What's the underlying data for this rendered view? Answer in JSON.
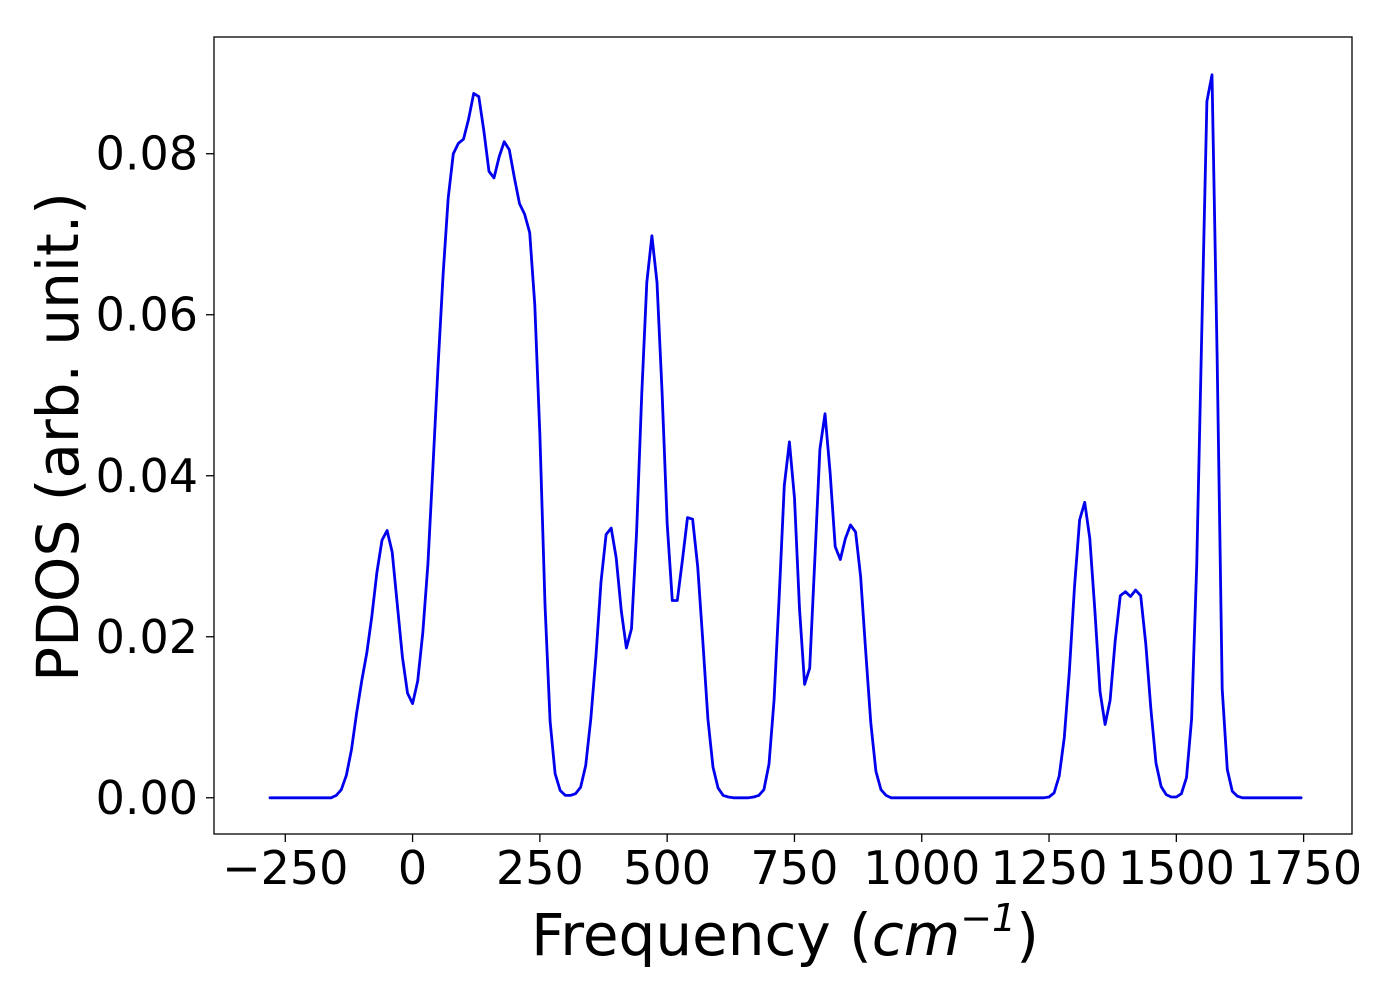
{
  "chart_data": {
    "type": "line",
    "title": "",
    "xlabel": "Frequency (",
    "xlabel_math": "cm",
    "xlabel_exponent": "−1",
    "xlabel_close": ")",
    "ylabel": "PDOS (arb. unit.)",
    "xlim": [
      -390,
      1845
    ],
    "ylim": [
      -0.0045,
      0.0945
    ],
    "xticks": [
      -250,
      0,
      250,
      500,
      750,
      1000,
      1250,
      1500,
      1750
    ],
    "xtick_labels": [
      "−250",
      "0",
      "250",
      "500",
      "750",
      "1000",
      "1250",
      "1500",
      "1750"
    ],
    "yticks": [
      0.0,
      0.02,
      0.04,
      0.06,
      0.08
    ],
    "ytick_labels": [
      "0.00",
      "0.02",
      "0.04",
      "0.06",
      "0.08"
    ],
    "grid": false,
    "line_color": "#0000ee",
    "series": [
      {
        "x": [
          -280,
          -160,
          -150,
          -140,
          -130,
          -120,
          -110,
          -100,
          -90,
          -80,
          -70,
          -60,
          -50,
          -40,
          -30,
          -20,
          -10,
          0,
          10,
          20,
          30,
          40,
          50,
          60,
          70,
          80,
          90,
          100,
          110,
          120,
          130,
          140,
          150,
          160,
          170,
          180,
          190,
          200,
          210,
          220,
          230,
          240,
          250,
          260,
          270,
          280,
          290,
          300,
          310,
          320,
          330,
          340,
          350,
          360,
          370,
          380,
          390,
          400,
          410,
          420,
          430,
          440,
          450,
          460,
          470,
          480,
          490,
          500,
          510,
          520,
          530,
          540,
          550,
          560,
          570,
          580,
          590,
          600,
          610,
          620,
          630,
          640,
          650,
          660,
          670,
          680,
          690,
          700,
          710,
          720,
          730,
          740,
          750,
          760,
          770,
          780,
          790,
          800,
          810,
          820,
          830,
          840,
          850,
          860,
          870,
          880,
          890,
          900,
          910,
          920,
          930,
          940,
          950,
          960,
          1240,
          1250,
          1260,
          1270,
          1280,
          1290,
          1300,
          1310,
          1320,
          1330,
          1340,
          1350,
          1360,
          1370,
          1380,
          1390,
          1400,
          1410,
          1420,
          1430,
          1440,
          1450,
          1460,
          1470,
          1480,
          1490,
          1500,
          1510,
          1520,
          1530,
          1540,
          1550,
          1560,
          1570,
          1580,
          1590,
          1600,
          1610,
          1620,
          1630,
          1640,
          1745
        ],
        "y": [
          0.0,
          0.0,
          0.0003,
          0.001,
          0.0028,
          0.006,
          0.0105,
          0.0145,
          0.018,
          0.0225,
          0.028,
          0.032,
          0.0332,
          0.0305,
          0.024,
          0.0175,
          0.013,
          0.0117,
          0.0145,
          0.0205,
          0.029,
          0.041,
          0.0535,
          0.065,
          0.0745,
          0.08,
          0.0813,
          0.0818,
          0.0843,
          0.0875,
          0.0871,
          0.0828,
          0.0778,
          0.077,
          0.0796,
          0.0815,
          0.0805,
          0.077,
          0.0738,
          0.0725,
          0.0702,
          0.0612,
          0.045,
          0.024,
          0.0095,
          0.003,
          0.0009,
          0.0003,
          0.0003,
          0.0005,
          0.0013,
          0.004,
          0.0098,
          0.0175,
          0.0268,
          0.0327,
          0.0335,
          0.0298,
          0.0232,
          0.0186,
          0.021,
          0.033,
          0.05,
          0.064,
          0.0698,
          0.064,
          0.0503,
          0.034,
          0.0245,
          0.0245,
          0.0295,
          0.0348,
          0.0346,
          0.0287,
          0.0195,
          0.0098,
          0.0038,
          0.0012,
          0.0003,
          0.0001,
          0.0,
          0.0,
          0.0,
          0.0,
          0.0001,
          0.0003,
          0.001,
          0.0042,
          0.0122,
          0.025,
          0.0388,
          0.0442,
          0.0372,
          0.0235,
          0.0141,
          0.0161,
          0.0295,
          0.0433,
          0.0477,
          0.0404,
          0.0312,
          0.0296,
          0.0322,
          0.0339,
          0.033,
          0.0275,
          0.0182,
          0.0093,
          0.0033,
          0.001,
          0.0003,
          0.0,
          0.0,
          0.0,
          0.0,
          0.0001,
          0.0006,
          0.0027,
          0.0075,
          0.0158,
          0.0262,
          0.0345,
          0.0367,
          0.0322,
          0.0232,
          0.0132,
          0.0091,
          0.0121,
          0.0195,
          0.0251,
          0.0256,
          0.025,
          0.0258,
          0.0251,
          0.0191,
          0.011,
          0.0043,
          0.0014,
          0.0004,
          0.0001,
          0.0001,
          0.0005,
          0.0025,
          0.0098,
          0.0288,
          0.058,
          0.0865,
          0.0898,
          0.055,
          0.0135,
          0.0035,
          0.0008,
          0.0002,
          0.0,
          0.0,
          0.0
        ]
      }
    ]
  }
}
